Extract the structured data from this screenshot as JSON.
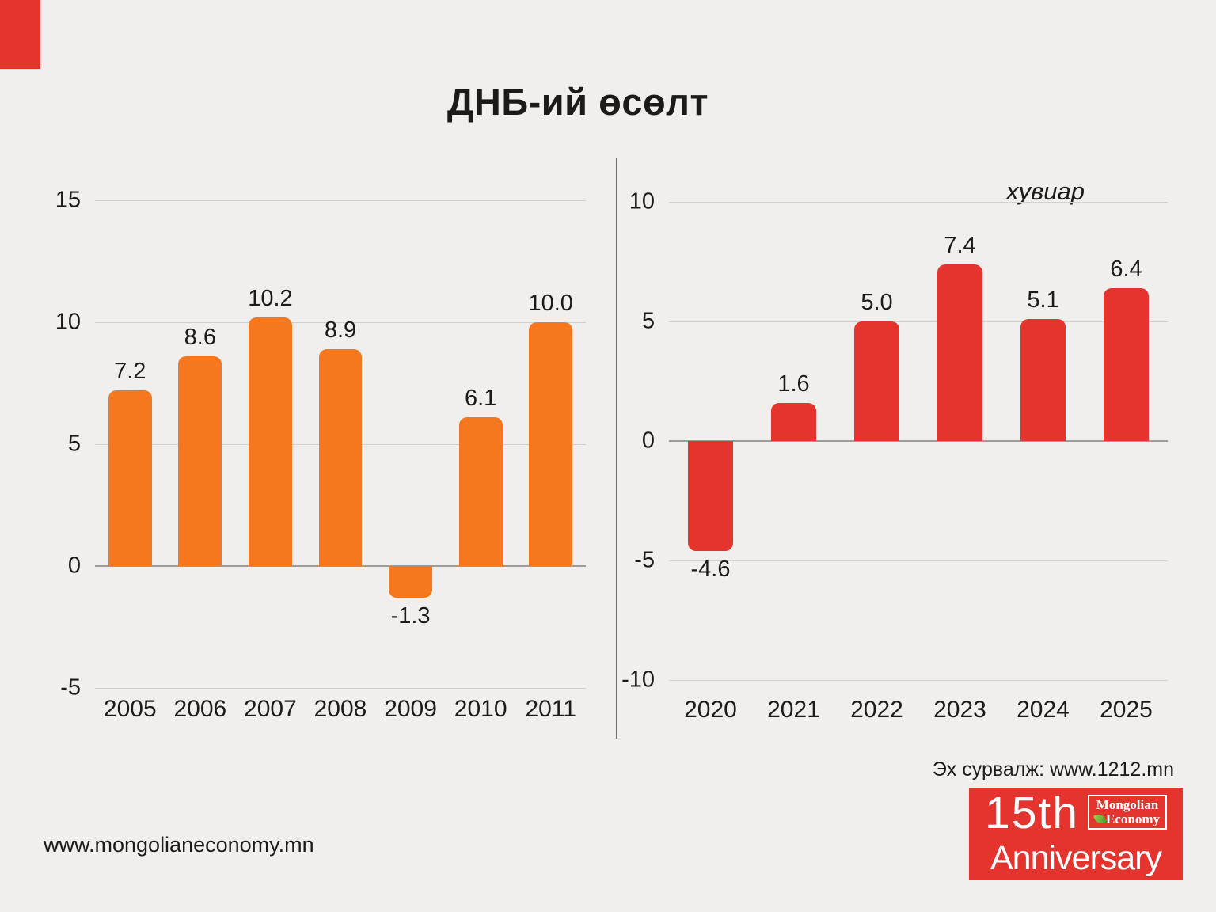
{
  "page": {
    "title": "ДНБ-ий өсөлт",
    "footer_url": "www.mongolianeconomy.mn",
    "source_label": "Эх сурвалж: www.1212.mn"
  },
  "badge": {
    "line1": "15th",
    "line2": "Anniversary",
    "logo_line1": "Mongolian",
    "logo_line2": "Economy",
    "leaf_icon": "leaf-icon",
    "bg_color": "#e5342e"
  },
  "colors": {
    "background": "#f0efed",
    "accent_red": "#e5342e",
    "accent_orange": "#f6781e",
    "grid_line": "#d3d1cf",
    "zero_line": "#9e9c9a",
    "divider": "#6e6e6c",
    "text": "#1d1b1a"
  },
  "chart_data": [
    {
      "type": "bar",
      "title": "ДНБ-ий өсөлт (2005-2011)",
      "categories": [
        "2005",
        "2006",
        "2007",
        "2008",
        "2009",
        "2010",
        "2011"
      ],
      "values": [
        7.2,
        8.6,
        10.2,
        8.9,
        -1.3,
        6.1,
        10.0
      ],
      "value_labels": [
        "7.2",
        "8.6",
        "10.2",
        "8.9",
        "-1.3",
        "6.1",
        "10.0"
      ],
      "bar_color": "#f6781e",
      "xlabel": "",
      "ylabel": "",
      "ylim": [
        -5,
        15
      ],
      "yticks": [
        15,
        10,
        5,
        0,
        -5
      ],
      "grid": true,
      "legend": "none",
      "unit_label": "",
      "bar_width_ratio": 0.62
    },
    {
      "type": "bar",
      "title": "ДНБ-ий өсөлт (2020-2025)",
      "categories": [
        "2020",
        "2021",
        "2022",
        "2023",
        "2024",
        "2025"
      ],
      "values": [
        -4.6,
        1.6,
        5.0,
        7.4,
        5.1,
        6.4
      ],
      "value_labels": [
        "-4.6",
        "1.6",
        "5.0",
        "7.4",
        "5.1",
        "6.4"
      ],
      "bar_color": "#e5342e",
      "xlabel": "",
      "ylabel": "",
      "ylim": [
        -10,
        10
      ],
      "yticks": [
        10,
        5,
        0,
        -5,
        -10
      ],
      "grid": true,
      "legend": "none",
      "unit_label": "хувиар",
      "bar_width_ratio": 0.54
    }
  ]
}
